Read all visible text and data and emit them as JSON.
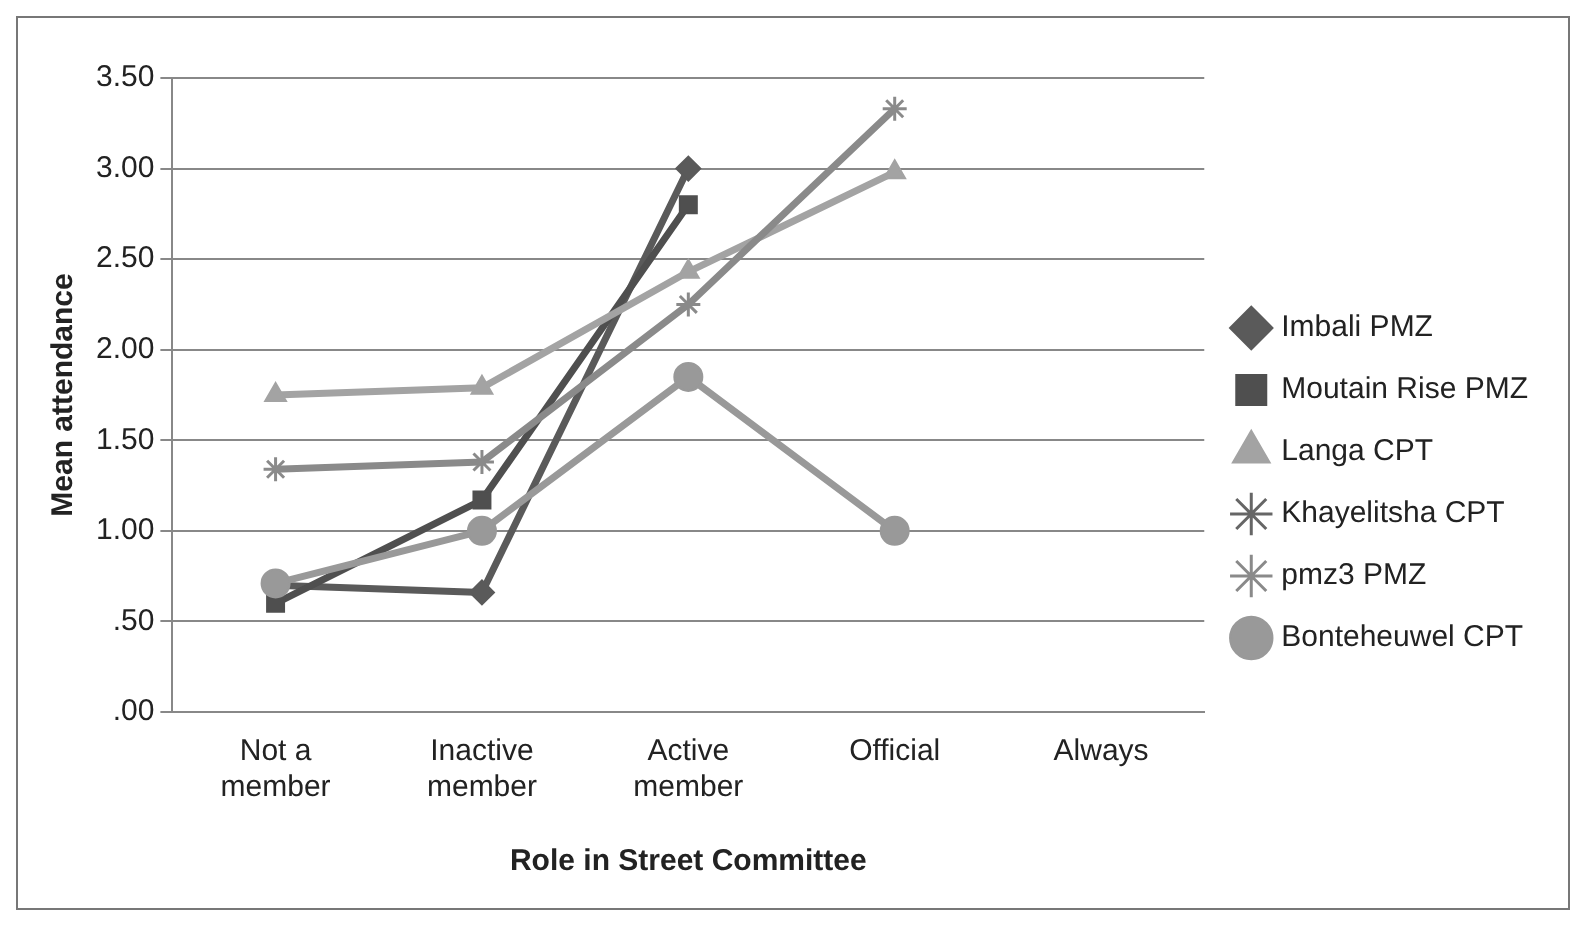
{
  "chart_data": {
    "type": "line",
    "xlabel": "Role in Street Committee",
    "ylabel": "Mean attendance",
    "categories": [
      "Not a member",
      "Inactive member",
      "Active member",
      "Official",
      "Always"
    ],
    "series": [
      {
        "name": "Imbali PMZ",
        "color": "#5a5a5a",
        "marker": "diamond",
        "values": [
          0.7,
          0.66,
          3.0,
          null,
          null
        ]
      },
      {
        "name": "Moutain Rise PMZ",
        "color": "#4f4f4f",
        "marker": "square",
        "values": [
          0.6,
          1.17,
          2.8,
          null,
          null
        ]
      },
      {
        "name": "Langa CPT",
        "color": "#a3a3a3",
        "marker": "triangle",
        "values": [
          1.75,
          1.79,
          2.43,
          2.98,
          null
        ]
      },
      {
        "name": "Khayelitsha CPT",
        "color": "#666666",
        "marker": "cross",
        "values": [
          null,
          null,
          null,
          null,
          null
        ]
      },
      {
        "name": "pmz3 PMZ",
        "color": "#8a8a8a",
        "marker": "cross",
        "values": [
          1.34,
          1.38,
          2.25,
          3.33,
          null
        ]
      },
      {
        "name": "Bonteheuwel CPT",
        "color": "#999999",
        "marker": "circle",
        "values": [
          0.71,
          1.0,
          1.85,
          1.0,
          null
        ]
      }
    ],
    "ylim": [
      0,
      3.5
    ],
    "yticks": [
      {
        "value": 0,
        "label": ".00"
      },
      {
        "value": 0.5,
        "label": ".50"
      },
      {
        "value": 1,
        "label": "1.00"
      },
      {
        "value": 1.5,
        "label": "1.50"
      },
      {
        "value": 2,
        "label": "2.00"
      },
      {
        "value": 2.5,
        "label": "2.50"
      },
      {
        "value": 3,
        "label": "3.00"
      },
      {
        "value": 3.5,
        "label": "3.50"
      }
    ],
    "grid": "y",
    "legend": "right"
  }
}
